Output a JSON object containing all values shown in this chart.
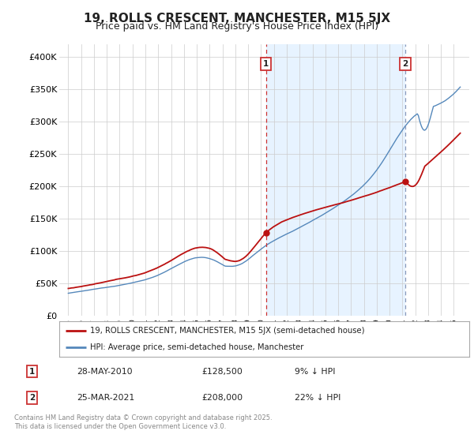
{
  "title": "19, ROLLS CRESCENT, MANCHESTER, M15 5JX",
  "subtitle": "Price paid vs. HM Land Registry's House Price Index (HPI)",
  "ylim": [
    0,
    420000
  ],
  "yticks": [
    0,
    50000,
    100000,
    150000,
    200000,
    250000,
    300000,
    350000,
    400000
  ],
  "ytick_labels": [
    "£0",
    "£50K",
    "£100K",
    "£150K",
    "£200K",
    "£250K",
    "£300K",
    "£350K",
    "£400K"
  ],
  "hpi_color": "#5588bb",
  "price_color": "#bb1111",
  "vline1_color": "#cc3333",
  "vline2_color": "#8899bb",
  "shade_color": "#ddeeff",
  "marker1_x": 2010.38,
  "marker2_x": 2021.22,
  "marker1_label": "1",
  "marker2_label": "2",
  "transaction1": "28-MAY-2010",
  "transaction1_price": "£128,500",
  "transaction1_hpi": "9% ↓ HPI",
  "transaction2": "25-MAR-2021",
  "transaction2_price": "£208,000",
  "transaction2_hpi": "22% ↓ HPI",
  "legend_label1": "19, ROLLS CRESCENT, MANCHESTER, M15 5JX (semi-detached house)",
  "legend_label2": "HPI: Average price, semi-detached house, Manchester",
  "footer": "Contains HM Land Registry data © Crown copyright and database right 2025.\nThis data is licensed under the Open Government Licence v3.0.",
  "bg_color": "#ffffff",
  "grid_color": "#cccccc",
  "title_fontsize": 11,
  "subtitle_fontsize": 9
}
